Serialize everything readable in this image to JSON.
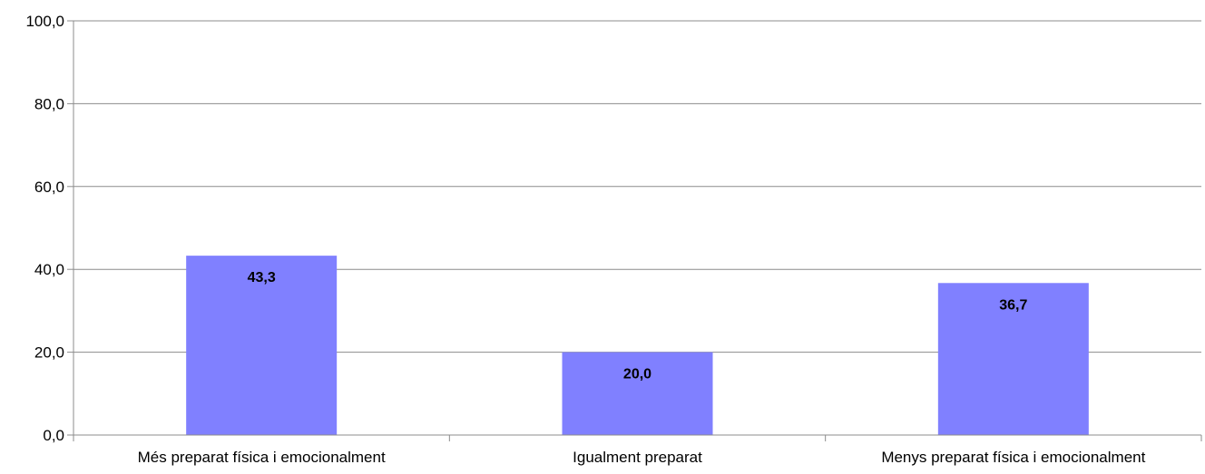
{
  "chart_data": {
    "type": "bar",
    "categories": [
      "Més preparat física i emocionalment",
      "Igualment preparat",
      "Menys preparat física i emocionalment"
    ],
    "values": [
      43.3,
      20.0,
      36.7
    ],
    "value_labels": [
      "43,3",
      "20,0",
      "36,7"
    ],
    "yticks": [
      0,
      20,
      40,
      60,
      80,
      100
    ],
    "ytick_labels": [
      "0,0",
      "20,0",
      "40,0",
      "60,0",
      "80,0",
      "100,0"
    ],
    "ylim": [
      0,
      100
    ],
    "title": "",
    "xlabel": "",
    "ylabel": "",
    "grid": true,
    "legend": "none",
    "colors": {
      "bar": "#8080ff",
      "grid": "#8c8c8c",
      "axis": "#8c8c8c"
    }
  }
}
